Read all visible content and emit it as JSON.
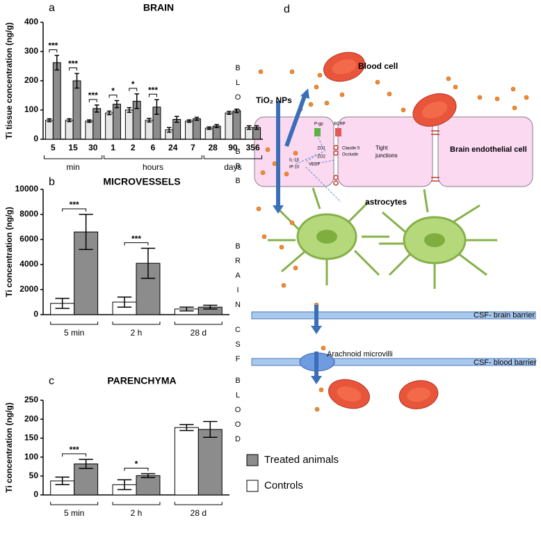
{
  "chart_data": [
    {
      "type": "bar",
      "label": "a",
      "title": "BRAIN",
      "y_label": "Ti tissue concentration (ng/g)",
      "groups": [
        {
          "label": "min",
          "categories": [
            "5",
            "15",
            "30"
          ]
        },
        {
          "label": "hours",
          "categories": [
            "1",
            "2",
            "6",
            "24",
            "7"
          ]
        },
        {
          "label": "days",
          "categories": [
            "28",
            "90",
            "356"
          ]
        }
      ],
      "series": [
        {
          "color": "#e6e6e6",
          "values": [
            65,
            65,
            62,
            90,
            100,
            65,
            32,
            62,
            38,
            90,
            40
          ],
          "errors": [
            5,
            5,
            4,
            6,
            8,
            6,
            8,
            4,
            4,
            5,
            6
          ]
        },
        {
          "color": "#8c8c8c",
          "values": [
            262,
            200,
            105,
            120,
            130,
            110,
            68,
            70,
            45,
            97,
            40
          ],
          "errors": [
            25,
            25,
            12,
            12,
            25,
            25,
            10,
            5,
            5,
            6,
            6
          ]
        }
      ],
      "significance": [
        "***",
        "***",
        "***",
        "*",
        "*",
        "***",
        null,
        null,
        null,
        null,
        null
      ],
      "ylim": [
        0,
        400
      ],
      "yticks": [
        0,
        100,
        200,
        300,
        400
      ]
    },
    {
      "type": "bar",
      "label": "b",
      "title": "MICROVESSELS",
      "y_label": "Ti concentration (ng/g)",
      "categories": [
        "5 min",
        "2 h",
        "28 d"
      ],
      "series": [
        {
          "name": "Controls",
          "color": "#ffffff",
          "values": [
            900,
            1000,
            450
          ],
          "errors": [
            400,
            400,
            150
          ]
        },
        {
          "name": "Treated animals",
          "color": "#8c8c8c",
          "values": [
            6600,
            4100,
            600
          ],
          "errors": [
            1400,
            1200,
            150
          ]
        }
      ],
      "significance": [
        "***",
        "***",
        null
      ],
      "ylim": [
        0,
        10000
      ],
      "yticks": [
        0,
        2000,
        4000,
        6000,
        8000,
        10000
      ]
    },
    {
      "type": "bar",
      "label": "c",
      "title": "PARENCHYMA",
      "y_label": "Ti concentration (ng/g)",
      "categories": [
        "5 min",
        "2 h",
        "28 d"
      ],
      "series": [
        {
          "color": "#ffffff",
          "values": [
            37,
            27,
            178
          ],
          "errors": [
            10,
            13,
            8
          ]
        },
        {
          "color": "#8c8c8c",
          "values": [
            82,
            51,
            173
          ],
          "errors": [
            12,
            5,
            21
          ]
        }
      ],
      "significance": [
        "***",
        "*",
        null
      ],
      "ylim": [
        0,
        250
      ],
      "yticks": [
        0,
        50,
        100,
        150,
        200,
        250
      ]
    }
  ],
  "diagram": {
    "label": "d",
    "blood_top": "BLOOD",
    "bbb": "BBB",
    "brain": "BRAIN",
    "csf": "CSF",
    "blood_bottom": "BLOOD",
    "blood_cell": "Blood cell",
    "nps": "TiO₂ NPs",
    "pgp": "P-gp",
    "bcrp": "BCRP",
    "zo1": "ZO1",
    "zo2": "ZO2",
    "claudin": "Claudin 5",
    "occludin": "Occludin",
    "tight_junctions": [
      "Tight",
      "junctions"
    ],
    "endothelial": "Brain endothelial cell",
    "il": "IL-1β",
    "ip": "IP-10",
    "vegf": "VEGF",
    "astrocytes": "astrocytes",
    "csf_brain": "CSF- brain barrier",
    "microvilli": "Arachnoid microvilli",
    "csf_blood": "CSF- blood barrier"
  }
}
